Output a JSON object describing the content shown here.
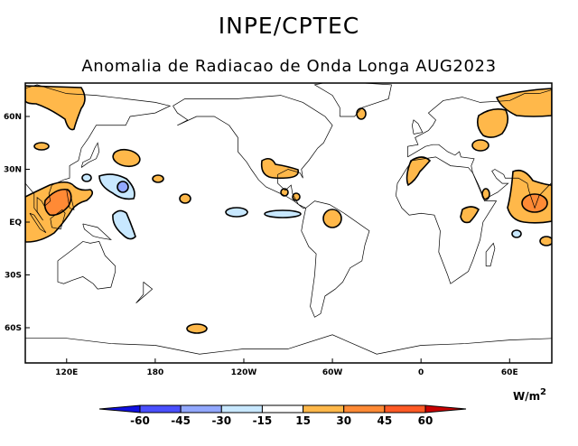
{
  "header": {
    "title": "INPE/CPTEC",
    "subtitle": "Anomalia de Radiacao de Onda Longa AUG2023"
  },
  "map": {
    "lat_labels": [
      "60N",
      "30N",
      "EQ",
      "30S",
      "60S"
    ],
    "lon_labels": [
      "120E",
      "180",
      "120W",
      "60W",
      "0",
      "60E"
    ]
  },
  "colorbar": {
    "units": "W/m",
    "units_exp": "2",
    "levels": [
      "-60",
      "-45",
      "-30",
      "-15",
      "15",
      "30",
      "45",
      "60"
    ],
    "colors": [
      "#4a50ff",
      "#92a8ff",
      "#c8e8ff",
      "#ffffff",
      "#ffb84a",
      "#ff8a35",
      "#ff5a25"
    ],
    "low_extend_color": "#1010e0",
    "high_extend_color": "#c80000"
  }
}
